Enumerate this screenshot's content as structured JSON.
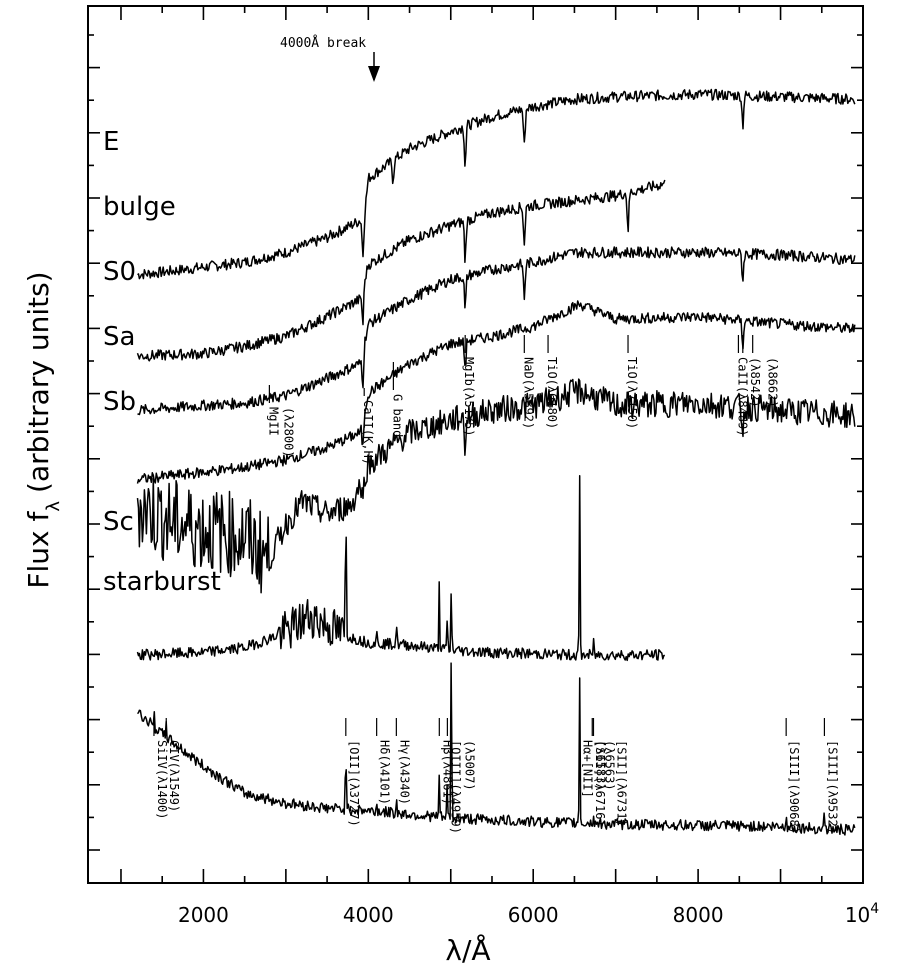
{
  "chart_data": {
    "type": "line",
    "xlabel": "λ/Å",
    "ylabel": "Flux f",
    "ylabel_sub": "λ",
    "ylabel_units": "(arbitrary units)",
    "xlim": [
      600,
      10000
    ],
    "xticks": [
      2000,
      4000,
      6000,
      8000
    ],
    "xtick_labels": [
      "2000",
      "4000",
      "6000",
      "8000"
    ],
    "xtick_last": {
      "value": 10000,
      "base": "10",
      "exp": "4"
    },
    "annotation": {
      "text": "4000Å break",
      "x": 4000
    },
    "series": [
      {
        "name": "E",
        "offset": 22,
        "points": [
          [
            1200,
            1.7
          ],
          [
            1500,
            1.8
          ],
          [
            2000,
            2.0
          ],
          [
            2500,
            2.2
          ],
          [
            3000,
            2.6
          ],
          [
            3500,
            3.2
          ],
          [
            3850,
            3.8
          ],
          [
            3950,
            4.0
          ],
          [
            4000,
            5.6
          ],
          [
            4500,
            6.8
          ],
          [
            5000,
            7.5
          ],
          [
            5500,
            8.1
          ],
          [
            6000,
            8.5
          ],
          [
            6500,
            8.8
          ],
          [
            7000,
            8.9
          ],
          [
            8000,
            9.0
          ],
          [
            9000,
            8.9
          ],
          [
            9900,
            8.8
          ]
        ],
        "dips": [
          [
            3934,
            1.5
          ],
          [
            4300,
            0.8
          ],
          [
            5175,
            1.6
          ],
          [
            5892,
            1.5
          ],
          [
            8542,
            1.2
          ]
        ]
      },
      {
        "name": "bulge",
        "offset": 17.9,
        "points": [
          [
            1200,
            2.5
          ],
          [
            2000,
            2.6
          ],
          [
            2500,
            2.9
          ],
          [
            3000,
            3.3
          ],
          [
            3500,
            4.1
          ],
          [
            3900,
            4.8
          ],
          [
            4000,
            6.2
          ],
          [
            4500,
            7.2
          ],
          [
            5000,
            7.8
          ],
          [
            5500,
            8.3
          ],
          [
            6000,
            8.6
          ],
          [
            6500,
            8.8
          ],
          [
            7000,
            9.0
          ],
          [
            7500,
            9.4
          ],
          [
            7600,
            9.5
          ]
        ],
        "dips": [
          [
            3934,
            1.5
          ],
          [
            5175,
            1.6
          ],
          [
            5892,
            1.5
          ],
          [
            7150,
            1.5
          ]
        ]
      },
      {
        "name": "S0",
        "offset": 15.9,
        "points": [
          [
            1200,
            2.3
          ],
          [
            2000,
            2.5
          ],
          [
            2500,
            2.6
          ],
          [
            3000,
            2.9
          ],
          [
            3500,
            3.6
          ],
          [
            3900,
            4.2
          ],
          [
            4000,
            5.8
          ],
          [
            4500,
            6.8
          ],
          [
            5000,
            7.6
          ],
          [
            5500,
            8.0
          ],
          [
            6000,
            8.3
          ],
          [
            6500,
            8.7
          ],
          [
            7000,
            8.7
          ],
          [
            8000,
            8.7
          ],
          [
            9000,
            8.6
          ],
          [
            9900,
            8.4
          ]
        ],
        "dips": [
          [
            3934,
            1.4
          ],
          [
            5175,
            1.4
          ],
          [
            5892,
            1.4
          ],
          [
            8542,
            1.1
          ]
        ]
      },
      {
        "name": "Sa",
        "offset": 13.3,
        "points": [
          [
            1200,
            2.1
          ],
          [
            2000,
            2.4
          ],
          [
            2500,
            2.6
          ],
          [
            3000,
            2.9
          ],
          [
            3500,
            3.4
          ],
          [
            3900,
            4.0
          ],
          [
            4000,
            5.6
          ],
          [
            4500,
            6.8
          ],
          [
            5000,
            7.6
          ],
          [
            5500,
            7.9
          ],
          [
            6000,
            8.3
          ],
          [
            6563,
            9.2
          ],
          [
            7000,
            8.6
          ],
          [
            8000,
            8.7
          ],
          [
            9000,
            8.4
          ],
          [
            9900,
            8.2
          ]
        ],
        "dips": [
          [
            3934,
            1.2
          ],
          [
            5175,
            1.2
          ],
          [
            8542,
            1.0
          ]
        ]
      },
      {
        "name": "Sb",
        "offset": 10.4,
        "points": [
          [
            1200,
            4.0
          ],
          [
            1600,
            3.3
          ],
          [
            2000,
            3.0
          ],
          [
            2500,
            2.7
          ],
          [
            2800,
            1.8
          ],
          [
            3000,
            3.2
          ],
          [
            3200,
            4.1
          ],
          [
            3500,
            3.6
          ],
          [
            3800,
            4.0
          ],
          [
            4000,
            5.6
          ],
          [
            4500,
            6.9
          ],
          [
            5000,
            7.4
          ],
          [
            5500,
            7.8
          ],
          [
            6000,
            8.0
          ],
          [
            6563,
            8.6
          ],
          [
            7000,
            8.0
          ],
          [
            8000,
            8.1
          ],
          [
            9000,
            7.8
          ],
          [
            9900,
            7.6
          ]
        ],
        "dips": [
          [
            3934,
            1.1
          ],
          [
            5175,
            1.2
          ],
          [
            8542,
            1.0
          ]
        ]
      },
      {
        "name": "Sc",
        "offset": 8.1,
        "points": [
          [
            1200,
            0.2
          ],
          [
            2000,
            0.3
          ],
          [
            2500,
            0.5
          ],
          [
            3000,
            1.1
          ],
          [
            3300,
            1.8
          ],
          [
            3700,
            1.0
          ],
          [
            4000,
            0.7
          ],
          [
            4500,
            0.6
          ],
          [
            5000,
            0.4
          ],
          [
            5500,
            0.3
          ],
          [
            6000,
            0.25
          ],
          [
            6500,
            0.2
          ],
          [
            7000,
            0.2
          ],
          [
            7600,
            0.2
          ]
        ],
        "lines": [
          [
            3727,
            6.6
          ],
          [
            4101,
            0.4
          ],
          [
            4340,
            1.0
          ],
          [
            4861,
            2.6
          ],
          [
            4959,
            1.4
          ],
          [
            5007,
            2.6
          ],
          [
            6563,
            7.4
          ],
          [
            6731,
            0.5
          ]
        ]
      },
      {
        "name": "starburst",
        "offset": 1.1,
        "points": [
          [
            1200,
            4.9
          ],
          [
            1500,
            4.0
          ],
          [
            2000,
            2.7
          ],
          [
            2500,
            1.6
          ],
          [
            3000,
            1.2
          ],
          [
            3500,
            1.0
          ],
          [
            4000,
            0.9
          ],
          [
            5000,
            0.6
          ],
          [
            6000,
            0.45
          ],
          [
            7000,
            0.35
          ],
          [
            8000,
            0.3
          ],
          [
            9000,
            0.25
          ],
          [
            9900,
            0.1
          ]
        ],
        "lines": [
          [
            1400,
            0.6
          ],
          [
            1549,
            0.8
          ],
          [
            3727,
            3.0
          ],
          [
            4101,
            0.3
          ],
          [
            4340,
            0.6
          ],
          [
            4861,
            1.7
          ],
          [
            4959,
            1.4
          ],
          [
            5007,
            7.5
          ],
          [
            6563,
            6.1
          ],
          [
            6731,
            0.4
          ],
          [
            9068,
            0.6
          ],
          [
            9532,
            0.8
          ]
        ]
      }
    ],
    "absorption_features": [
      {
        "label": "MgII",
        "sub": "(λ2800)",
        "x": 2800
      },
      {
        "label": "CaII(K,H)",
        "x": 3950
      },
      {
        "label": "G band",
        "x": 4304
      },
      {
        "label": "MgIb(λ5175)",
        "x": 5175
      },
      {
        "label": "NaD(λ5892)",
        "x": 5892
      },
      {
        "label": "TiO(λ6180)",
        "x": 6180
      },
      {
        "label": "TiO(λ7150)",
        "x": 7150
      },
      {
        "label": "CaII(λ8489)",
        "x": 8489
      },
      {
        "label": "(λ8542)",
        "x": 8542
      },
      {
        "label": "(λ8662)",
        "x": 8662
      }
    ],
    "emission_features": [
      {
        "label": "SiIV(λ1400)",
        "x": 1400
      },
      {
        "label": "CIV(λ1549)",
        "x": 1549
      },
      {
        "label": "[OII](λ3727)",
        "x": 3727
      },
      {
        "label": "Hδ(λ4101)",
        "x": 4101
      },
      {
        "label": "Hγ(λ4340)",
        "x": 4340
      },
      {
        "label": "Hβ(λ4861)",
        "x": 4861
      },
      {
        "label": "[OIII](λ4959)",
        "x": 4959
      },
      {
        "label": "(λ5007)",
        "x": 5007
      },
      {
        "label": "(λ6563)",
        "x": 6563
      },
      {
        "label": "(λ6583)",
        "x": 6583
      },
      {
        "label": "Hα+[NII]",
        "x": 6563
      },
      {
        "label": "[SII](λ6716)",
        "x": 6716
      },
      {
        "label": "[SII](λ6731)",
        "x": 6731
      },
      {
        "label": "[SIII](λ9068)",
        "x": 9068
      },
      {
        "label": "[SIII](λ9532)",
        "x": 9532
      }
    ]
  }
}
